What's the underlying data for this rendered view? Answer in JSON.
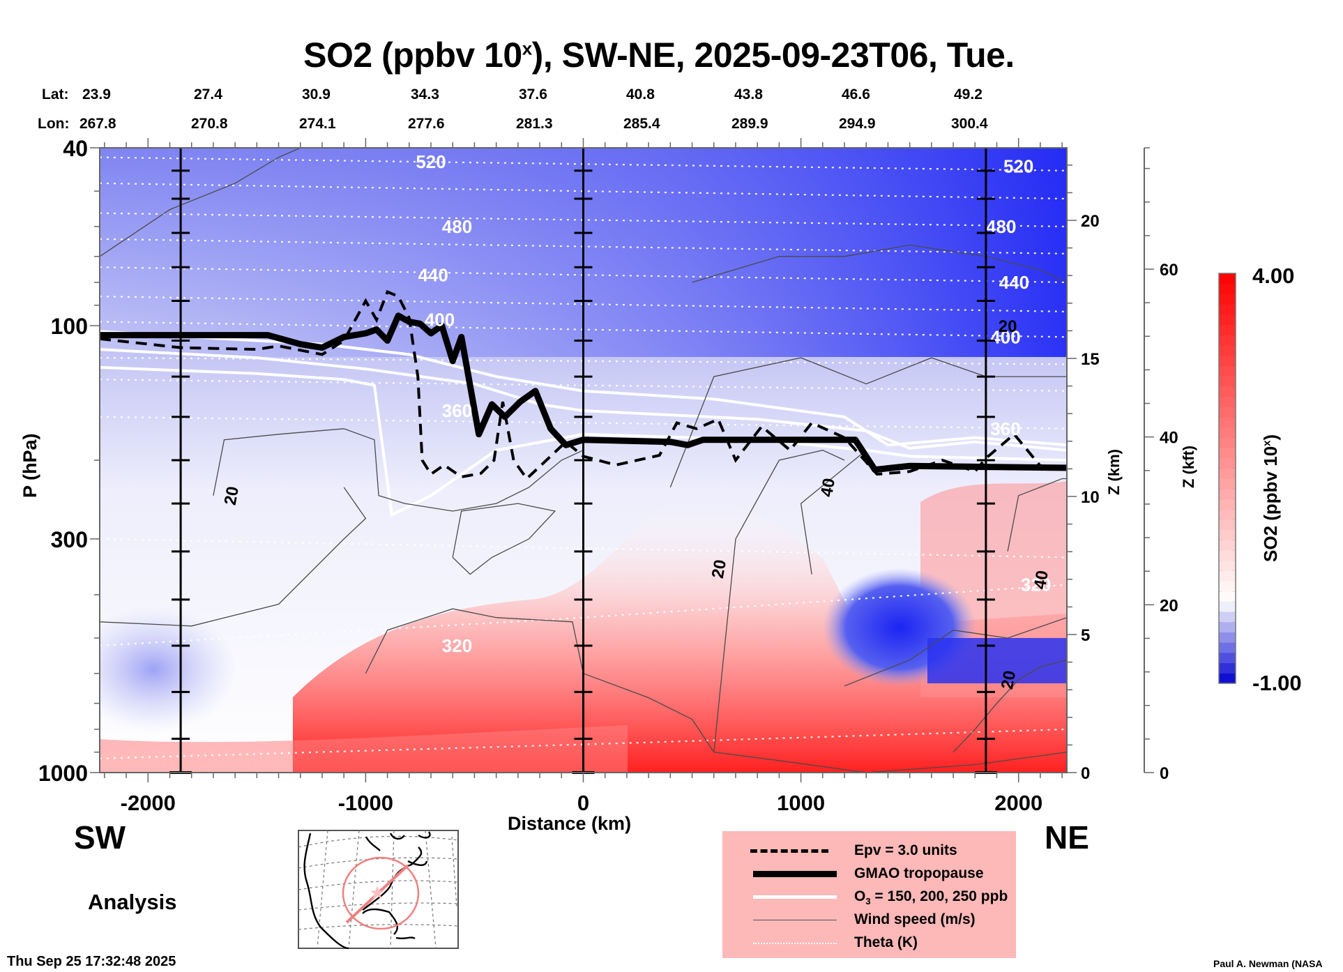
{
  "title": {
    "prefix": "SO2 (ppbv 10",
    "superscript": "x",
    "suffix": "), SW-NE, 2025-09-23T06, Tue."
  },
  "coordinates": {
    "lat_label": "Lat:",
    "lon_label": "Lon:",
    "lat_values": [
      "23.9",
      "27.4",
      "30.9",
      "34.3",
      "37.6",
      "40.8",
      "43.8",
      "46.6",
      "49.2"
    ],
    "lon_values": [
      "267.8",
      "270.8",
      "274.1",
      "277.6",
      "281.3",
      "285.4",
      "289.9",
      "294.9",
      "300.4"
    ]
  },
  "direction_labels": {
    "left": "SW",
    "right": "NE"
  },
  "product_label": "Analysis",
  "timestamp": "Thu Sep 25 17:32:48 2025",
  "credit": "Paul A. Newman (NASA",
  "legend": {
    "items": [
      {
        "label": "Epv = 3.0 units",
        "style": "dashed-black"
      },
      {
        "label": "GMAO tropopause",
        "style": "thick-black"
      },
      {
        "label_prefix": "O",
        "label_sub": "3",
        "label_suffix": " = 150, 200, 250 ppb",
        "style": "white"
      },
      {
        "label": "Wind speed (m/s)",
        "style": "thin-gray"
      },
      {
        "label": "Theta (K)",
        "style": "dotted-white"
      }
    ],
    "background": "#fdb8b8"
  },
  "colorbar": {
    "title_prefix": "SO2 (ppbv 10",
    "title_superscript": "x",
    "title_suffix": ")",
    "max_label": "4.00",
    "min_label": "-1.00",
    "min": -1.0,
    "max": 4.0,
    "segments": 40,
    "low_color": "#0000d0",
    "mid_color": "#ffffff",
    "high_color": "#ff0000"
  },
  "map_inset": {
    "region": "North America / Eastern US",
    "track_color": "#f08080",
    "center_marker": "star"
  },
  "chart_data": {
    "type": "heatmap",
    "title": "SO2 (ppbv 10^x), SW-NE, 2025-09-23T06, Tue.",
    "xlabel": "Distance (km)",
    "ylabel": "P (hPa)",
    "y2label": "Z (km)",
    "y3label": "Z (kft)",
    "xlim": [
      -2222,
      2222
    ],
    "ylim": [
      1000,
      40
    ],
    "yscale": "log",
    "x_ticks": [
      -2000,
      -1000,
      0,
      1000,
      2000
    ],
    "x_tick_labels": [
      "-2000",
      "-1000",
      "0",
      "1000",
      "2000"
    ],
    "y_ticks": [
      40,
      100,
      300,
      1000
    ],
    "y_tick_labels": [
      "40",
      "100",
      "300",
      "1000"
    ],
    "z_km_ticks": [
      0,
      5,
      10,
      15,
      20
    ],
    "z_km_tick_labels": [
      "0",
      "5",
      "10",
      "15",
      "20"
    ],
    "z_kft_ticks": [
      0,
      20,
      40,
      60
    ],
    "z_kft_tick_labels": [
      "0",
      "20",
      "40",
      "60"
    ],
    "vertical_reference_lines_km": [
      -1850,
      0,
      1850
    ],
    "color_range": [
      -1.0,
      4.0
    ],
    "theta_contour_labels": [
      {
        "value": "520",
        "x": -700,
        "p": 43
      },
      {
        "value": "480",
        "x": -580,
        "p": 60
      },
      {
        "value": "440",
        "x": -690,
        "p": 77
      },
      {
        "value": "400",
        "x": -660,
        "p": 97
      },
      {
        "value": "360",
        "x": -580,
        "p": 155
      },
      {
        "value": "320",
        "x": -580,
        "p": 520
      },
      {
        "value": "520",
        "x": 2000,
        "p": 44
      },
      {
        "value": "480",
        "x": 1920,
        "p": 60
      },
      {
        "value": "440",
        "x": 1980,
        "p": 80
      },
      {
        "value": "400",
        "x": 1940,
        "p": 106
      },
      {
        "value": "360",
        "x": 1940,
        "p": 170
      },
      {
        "value": "320",
        "x": 2080,
        "p": 380
      }
    ],
    "wind_contour_labels": [
      {
        "value": "20",
        "x": -1620,
        "p": 240
      },
      {
        "value": "20",
        "x": 1950,
        "p": 100
      },
      {
        "value": "40",
        "x": 1120,
        "p": 230
      },
      {
        "value": "20",
        "x": 620,
        "p": 350
      },
      {
        "value": "40",
        "x": 2100,
        "p": 370
      },
      {
        "value": "20",
        "x": 1950,
        "p": 620
      }
    ],
    "tropopause_hPa": [
      [
        -2222,
        105
      ],
      [
        -1450,
        105
      ],
      [
        -1300,
        110
      ],
      [
        -1200,
        112
      ],
      [
        -1100,
        106
      ],
      [
        -1000,
        104
      ],
      [
        -950,
        102
      ],
      [
        -900,
        108
      ],
      [
        -850,
        95
      ],
      [
        -800,
        98
      ],
      [
        -750,
        99
      ],
      [
        -700,
        104
      ],
      [
        -650,
        100
      ],
      [
        -600,
        120
      ],
      [
        -560,
        106
      ],
      [
        -480,
        175
      ],
      [
        -420,
        150
      ],
      [
        -360,
        160
      ],
      [
        -290,
        148
      ],
      [
        -220,
        140
      ],
      [
        -150,
        170
      ],
      [
        -80,
        185
      ],
      [
        0,
        180
      ],
      [
        400,
        182
      ],
      [
        480,
        185
      ],
      [
        550,
        180
      ],
      [
        1250,
        180
      ],
      [
        1340,
        210
      ],
      [
        1500,
        206
      ],
      [
        1850,
        207
      ],
      [
        2222,
        208
      ]
    ],
    "epv_3pv_hPa": [
      [
        -2222,
        107
      ],
      [
        -1850,
        112
      ],
      [
        -1500,
        113
      ],
      [
        -1400,
        111
      ],
      [
        -1200,
        116
      ],
      [
        -1100,
        108
      ],
      [
        -1000,
        88
      ],
      [
        -950,
        97
      ],
      [
        -900,
        84
      ],
      [
        -850,
        86
      ],
      [
        -800,
        96
      ],
      [
        -760,
        130
      ],
      [
        -740,
        200
      ],
      [
        -700,
        215
      ],
      [
        -640,
        205
      ],
      [
        -560,
        218
      ],
      [
        -470,
        214
      ],
      [
        -410,
        200
      ],
      [
        -370,
        148
      ],
      [
        -320,
        200
      ],
      [
        -260,
        220
      ],
      [
        -160,
        198
      ],
      [
        -80,
        182
      ],
      [
        0,
        196
      ],
      [
        150,
        205
      ],
      [
        350,
        195
      ],
      [
        430,
        165
      ],
      [
        520,
        170
      ],
      [
        620,
        162
      ],
      [
        700,
        200
      ],
      [
        820,
        168
      ],
      [
        950,
        190
      ],
      [
        1050,
        165
      ],
      [
        1200,
        178
      ],
      [
        1350,
        215
      ],
      [
        1500,
        212
      ],
      [
        1650,
        200
      ],
      [
        1800,
        212
      ],
      [
        1850,
        198
      ],
      [
        1980,
        175
      ],
      [
        2100,
        206
      ],
      [
        2222,
        210
      ]
    ],
    "ozone_contours_hPa": {
      "150": [
        [
          -2222,
          103
        ],
        [
          -1800,
          106
        ],
        [
          -1200,
          110
        ],
        [
          -800,
          116
        ],
        [
          -400,
          130
        ],
        [
          0,
          140
        ],
        [
          600,
          146
        ],
        [
          1200,
          160
        ],
        [
          1400,
          185
        ],
        [
          1800,
          178
        ],
        [
          2222,
          185
        ]
      ],
      "200": [
        [
          -2222,
          113
        ],
        [
          -1500,
          118
        ],
        [
          -1000,
          125
        ],
        [
          -500,
          135
        ],
        [
          -200,
          150
        ],
        [
          0,
          155
        ],
        [
          800,
          162
        ],
        [
          1300,
          172
        ],
        [
          1500,
          188
        ],
        [
          1800,
          182
        ],
        [
          2222,
          190
        ]
      ],
      "250": [
        [
          -2222,
          124
        ],
        [
          -1500,
          128
        ],
        [
          -1100,
          132
        ],
        [
          -960,
          136
        ],
        [
          -880,
          265
        ],
        [
          -700,
          240
        ],
        [
          -400,
          190
        ],
        [
          0,
          175
        ],
        [
          800,
          180
        ],
        [
          1300,
          190
        ],
        [
          1500,
          196
        ],
        [
          2222,
          200
        ]
      ]
    }
  }
}
